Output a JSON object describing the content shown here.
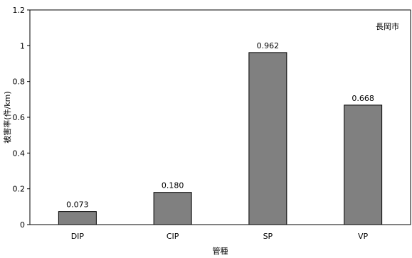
{
  "chart_data": {
    "type": "bar",
    "categories": [
      "DIP",
      "CIP",
      "SP",
      "VP"
    ],
    "values": [
      0.073,
      0.18,
      0.962,
      0.668
    ],
    "value_labels": [
      "0.073",
      "0.180",
      "0.962",
      "0.668"
    ],
    "xlabel": "管種",
    "ylabel": "被害率(件/km)",
    "ylim": [
      0,
      1.2
    ],
    "yticks": [
      0,
      0.2,
      0.4,
      0.6,
      0.8,
      1,
      1.2
    ],
    "ytick_labels": [
      "0",
      "0.2",
      "0.4",
      "0.6",
      "0.8",
      "1",
      "1.2"
    ],
    "annotation": "長岡市",
    "grid": false,
    "bar_color": "#808080"
  }
}
